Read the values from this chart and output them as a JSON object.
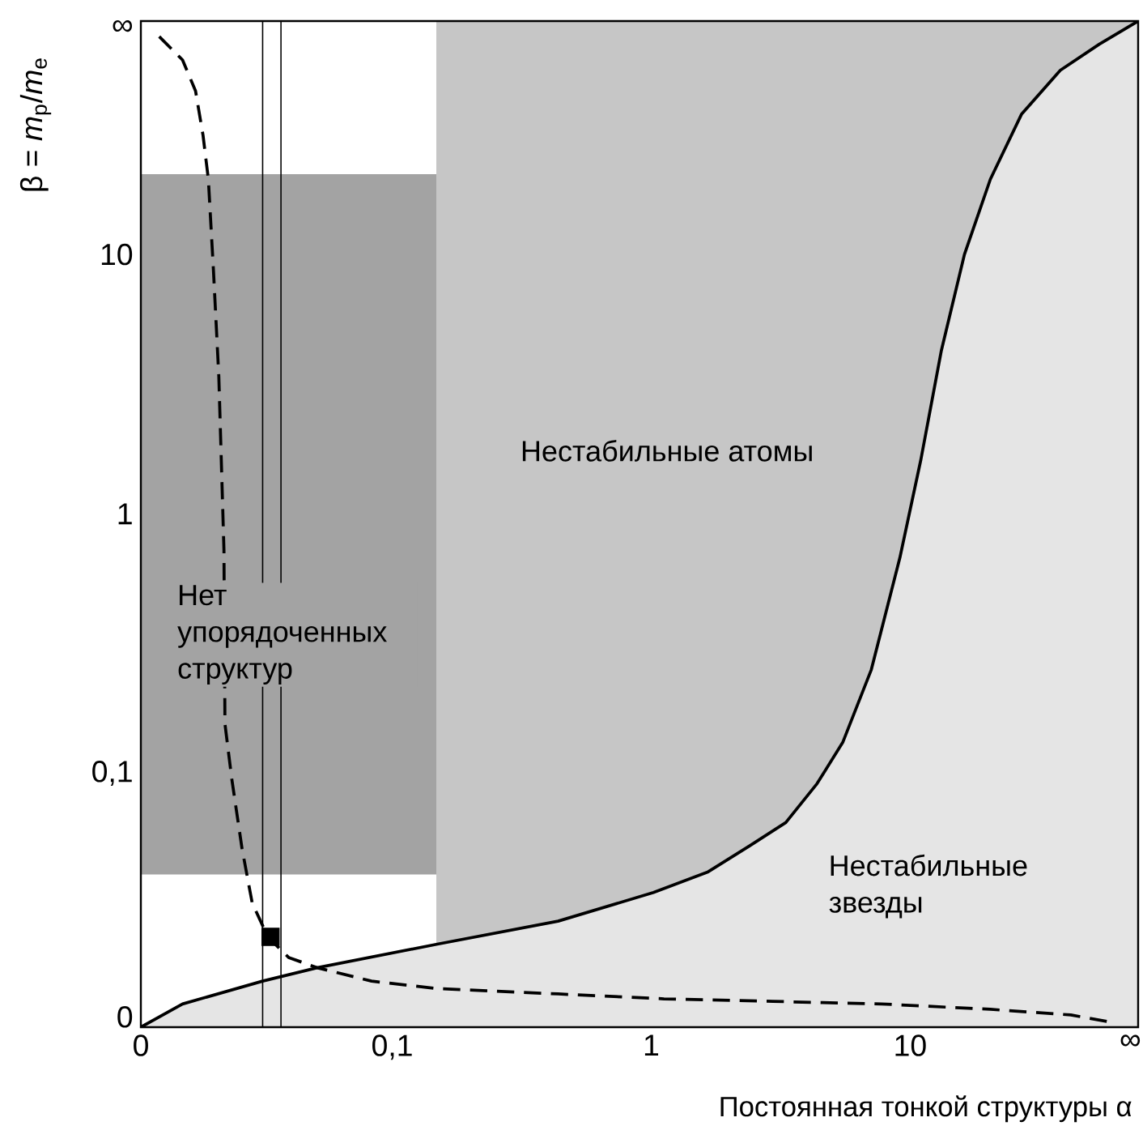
{
  "chart_data": {
    "type": "area",
    "xlabel": "Постоянная тонкой структуры α",
    "ylabel": "β = *m*$_{p}$/*m*$_{e}$",
    "log": "xy",
    "xlim": [
      0.0107,
      75.9
    ],
    "ylim": [
      0.0105,
      79.4
    ],
    "xticks": [
      {
        "value": 0.0107,
        "label": "0"
      },
      {
        "value": 0.1,
        "label": "0,1"
      },
      1,
      10,
      {
        "value": 70.8,
        "label": "∞"
      }
    ],
    "yticks": [
      {
        "value": 0.0115,
        "label": "0"
      },
      {
        "value": 0.1,
        "label": "0,1"
      },
      1,
      10,
      {
        "value": 75,
        "label": "∞"
      }
    ],
    "bands": [
      {
        "axis": "y",
        "from": 0.0407,
        "to": 20.4,
        "color": "#a3a3a3"
      },
      {
        "axis": "x",
        "from": 0.148,
        "to": 75.9,
        "color": "#c6c6c6"
      }
    ],
    "ref_lines": [
      {
        "axis": "x",
        "value": 0.0316,
        "color": "#000000"
      },
      {
        "axis": "x",
        "value": 0.0372,
        "color": "#000000"
      }
    ],
    "series": [
      {
        "color": "#e5e5e5",
        "x": [
          0.0107,
          0.0155,
          0.0316,
          0.0513,
          0.148,
          0.437,
          1.02,
          1.66,
          2.4,
          3.31,
          4.37,
          5.5,
          7.08,
          9.12,
          11.0,
          13.2,
          16.2,
          20.4,
          26.9,
          38.0,
          53.7,
          75.9
        ],
        "values": [
          0.0105,
          0.0129,
          0.0158,
          0.0178,
          0.0219,
          0.0269,
          0.0347,
          0.0417,
          0.0525,
          0.0646,
          0.0912,
          0.132,
          0.251,
          0.676,
          1.62,
          4.27,
          10,
          19.5,
          34.7,
          51.3,
          64.6,
          79.4
        ]
      },
      {
        "type": "line",
        "color": "#000000",
        "line_style": "dashed",
        "x": [
          0.0126,
          0.0155,
          0.0174,
          0.0186,
          0.0195,
          0.0204,
          0.0214,
          0.0224,
          0.0226,
          0.024,
          0.0263,
          0.0288,
          0.0331,
          0.0398,
          0.0513,
          0.0832,
          0.148,
          0.437,
          1.12,
          2.95,
          7.76,
          20.4,
          41.7,
          58.9
        ],
        "values": [
          69.2,
          56.2,
          42.7,
          28.8,
          19.5,
          8.71,
          3.39,
          0.724,
          0.155,
          0.0955,
          0.0513,
          0.0316,
          0.0234,
          0.0195,
          0.0178,
          0.0158,
          0.0148,
          0.0141,
          0.0135,
          0.0132,
          0.0129,
          0.0123,
          0.0117,
          0.011
        ]
      },
      {
        "type": "scatter",
        "color": "#000000",
        "marker": "square",
        "x": [
          0.0339
        ],
        "values": [
          0.0234
        ]
      }
    ],
    "annotations": [
      "Нестабильные атомы",
      "Нет упорядоченных структур",
      "Нестабильные звезды"
    ]
  }
}
